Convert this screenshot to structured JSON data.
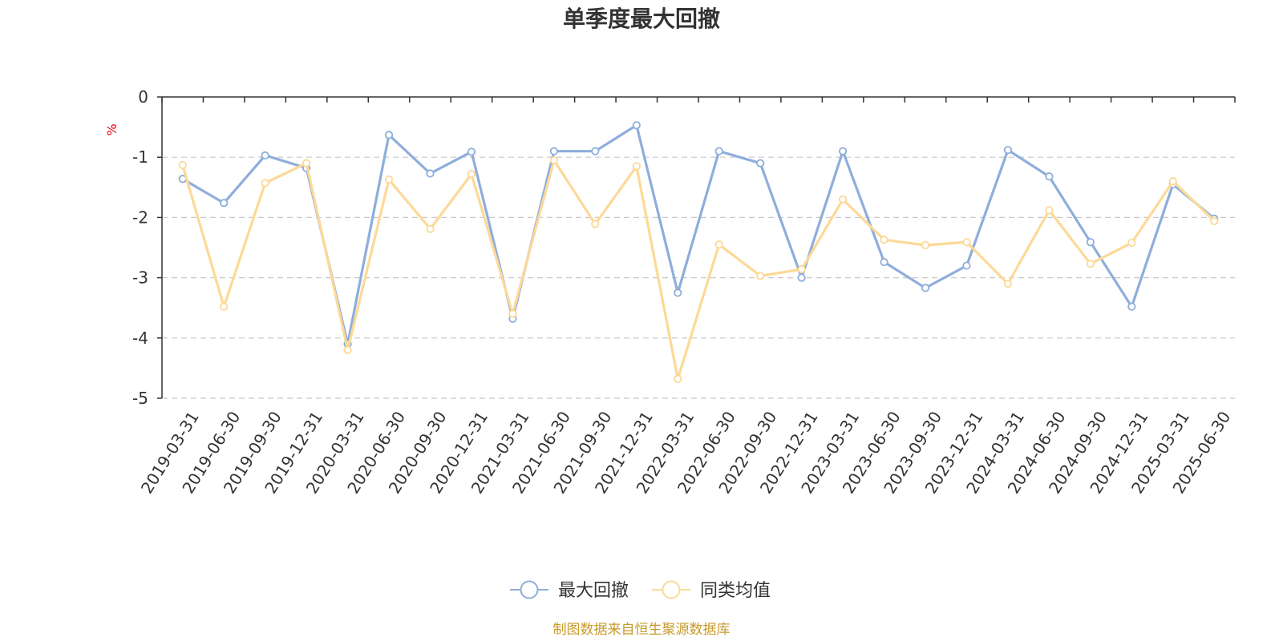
{
  "chart_data": {
    "type": "line",
    "title": "单季度最大回撤",
    "unit_label": "%",
    "ylim": [
      -5,
      0
    ],
    "y_ticks": [
      0,
      -1,
      -2,
      -3,
      -4,
      -5
    ],
    "grid": "horizontal-dashed",
    "legend_position": "bottom",
    "categories": [
      "2019-03-31",
      "2019-06-30",
      "2019-09-30",
      "2019-12-31",
      "2020-03-31",
      "2020-06-30",
      "2020-09-30",
      "2020-12-31",
      "2021-03-31",
      "2021-06-30",
      "2021-09-30",
      "2021-12-31",
      "2022-03-31",
      "2022-06-30",
      "2022-09-30",
      "2022-12-31",
      "2023-03-31",
      "2023-06-30",
      "2023-09-30",
      "2023-12-31",
      "2024-03-31",
      "2024-06-30",
      "2024-09-30",
      "2024-12-31",
      "2025-03-31",
      "2025-06-30"
    ],
    "series": [
      {
        "name": "最大回撤",
        "color": "#8eaedb",
        "values": [
          -1.36,
          -1.76,
          -0.97,
          -1.18,
          -4.1,
          -0.63,
          -1.27,
          -0.91,
          -3.68,
          -0.9,
          -0.9,
          -0.47,
          -3.25,
          -0.9,
          -1.1,
          -3.0,
          -0.9,
          -2.74,
          -3.17,
          -2.8,
          -0.88,
          -1.32,
          -2.41,
          -3.48,
          -1.45,
          -2.02
        ]
      },
      {
        "name": "同类均值",
        "color": "#fcd997",
        "values": [
          -1.13,
          -3.48,
          -1.43,
          -1.1,
          -4.2,
          -1.37,
          -2.19,
          -1.28,
          -3.6,
          -1.05,
          -2.11,
          -1.15,
          -4.68,
          -2.45,
          -2.97,
          -2.86,
          -1.7,
          -2.37,
          -2.46,
          -2.41,
          -3.1,
          -1.88,
          -2.77,
          -2.42,
          -1.4,
          -2.06
        ]
      }
    ]
  },
  "footer": {
    "source_text": "制图数据来自恒生聚源数据库"
  }
}
